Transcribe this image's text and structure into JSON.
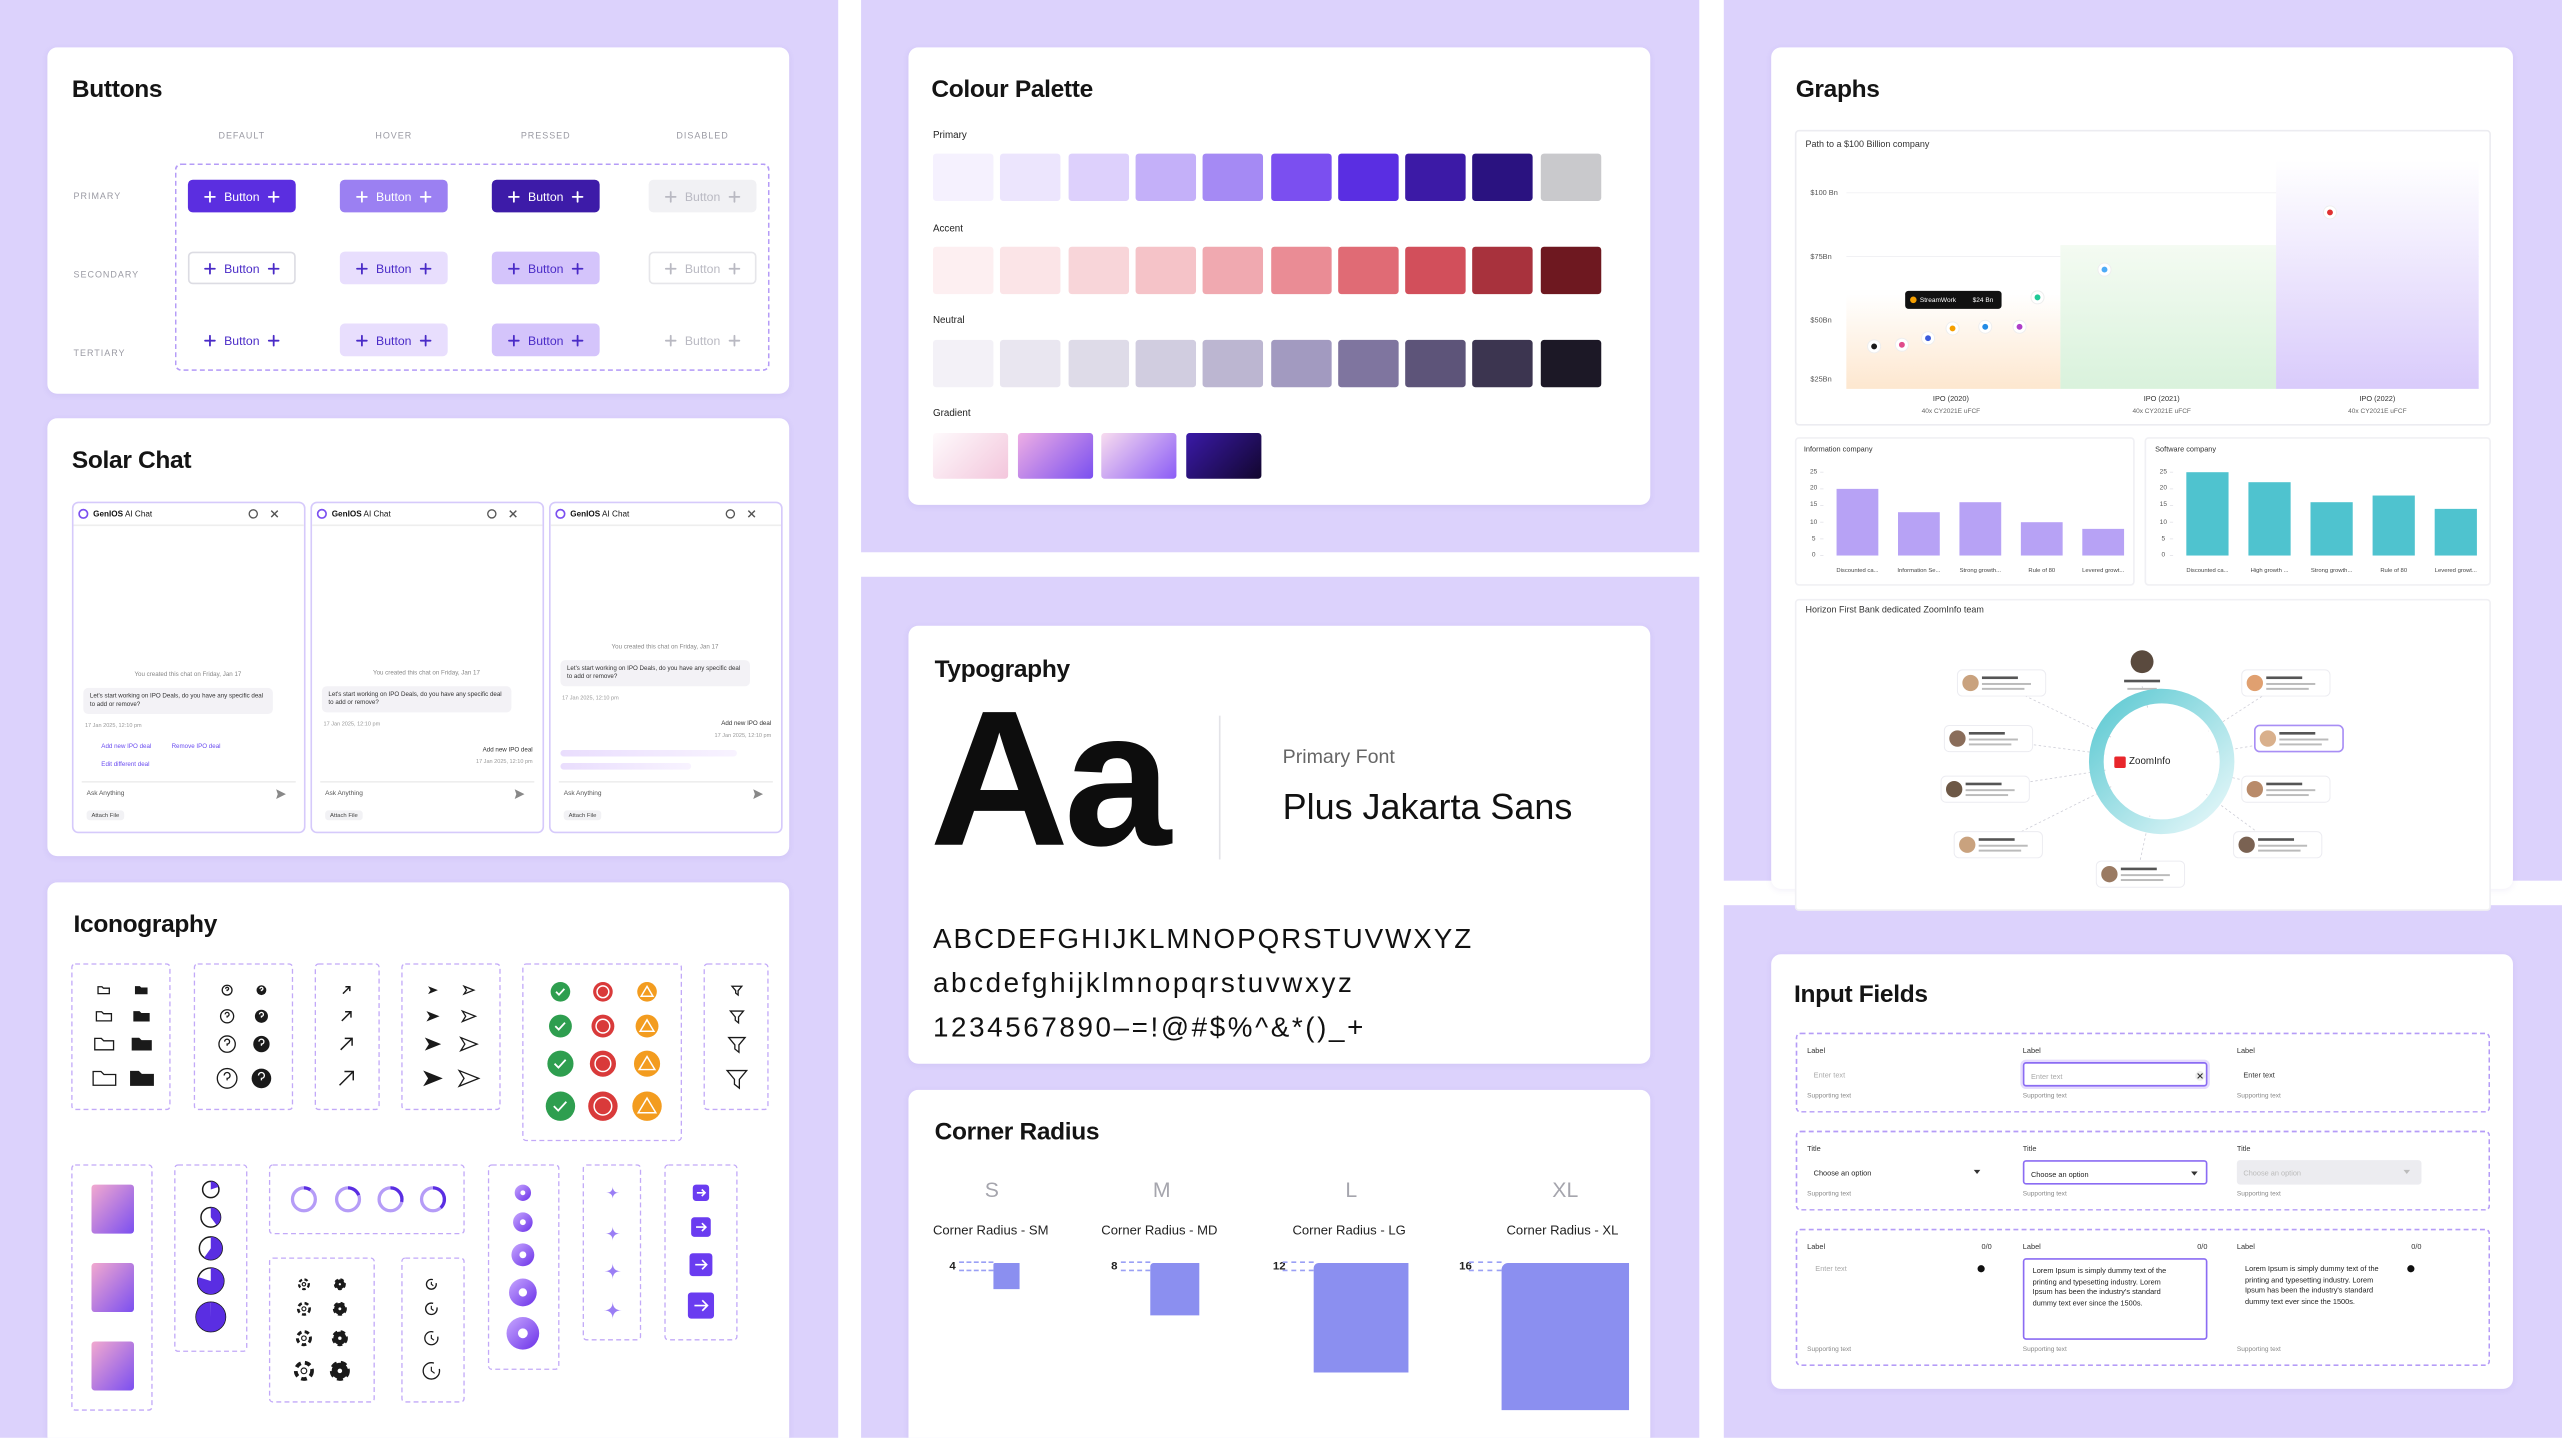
{
  "buttons": {
    "title": "Buttons",
    "states": [
      "DEFAULT",
      "HOVER",
      "PRESSED",
      "DISABLED"
    ],
    "variants": [
      "PRIMARY",
      "SECONDARY",
      "TERTIARY"
    ],
    "label": "Button"
  },
  "solar_chat": {
    "title": "Solar Chat",
    "app_name": "GenIOS",
    "app_suffix": "AI Chat",
    "created": "You created this chat on Friday, Jan 17",
    "prompt": "Let's start working on IPO Deals, do you have any specific deal to add or remove?",
    "timestamp": "17 Jan 2025, 12:10 pm",
    "options": [
      "Add new IPO deal",
      "Remove IPO deal",
      "Edit different deal"
    ],
    "input_placeholder": "Ask Anything",
    "attach": "Attach File"
  },
  "iconography": {
    "title": "Iconography"
  },
  "colour_palette": {
    "title": "Colour Palette",
    "groups": [
      {
        "name": "Primary",
        "colors": [
          "#f5f1fe",
          "#ece5fd",
          "#ddd0fc",
          "#c4b0f9",
          "#a58af4",
          "#7b4ff0",
          "#5a2ee2",
          "#3c1aa6",
          "#2a1280",
          "#c9c9cc"
        ]
      },
      {
        "name": "Accent",
        "colors": [
          "#fdeff1",
          "#fbe4e7",
          "#f8d5d9",
          "#f5c3c8",
          "#f0a9b0",
          "#ea8c95",
          "#e06b75",
          "#d24f5b",
          "#a8323d",
          "#6e1820"
        ]
      },
      {
        "name": "Neutral",
        "colors": [
          "#f3f1f7",
          "#e9e6f0",
          "#dedbe8",
          "#d1cde0",
          "#bcb6d1",
          "#a29ac0",
          "#7f759f",
          "#5d5479",
          "#3c3550",
          "#1c1826"
        ]
      }
    ],
    "gradient": {
      "name": "Gradient",
      "stops": [
        [
          "#fefafc",
          "#f3c6dc"
        ],
        [
          "#eeaee4",
          "#7a4ff0"
        ],
        [
          "#f8dcef",
          "#8b5cf6"
        ],
        [
          "#3a1aa8",
          "#12062e"
        ]
      ]
    }
  },
  "typography": {
    "title": "Typography",
    "sample": "Aa",
    "font_caption": "Primary Font",
    "font_name": "Plus Jakarta Sans",
    "uppercase": "ABCDEFGHIJKLMNOPQRSTUVWXYZ",
    "lowercase": "abcdefghijklmnopqrstuvwxyz",
    "symbols": "1234567890–=!@#$%^&*()_+"
  },
  "corner_radius": {
    "title": "Corner Radius",
    "color": "#8b8ff0",
    "items": [
      {
        "size": "S",
        "label": "Corner Radius - SM",
        "radius": 4
      },
      {
        "size": "M",
        "label": "Corner Radius - MD",
        "radius": 8
      },
      {
        "size": "L",
        "label": "Corner Radius - LG",
        "radius": 12
      },
      {
        "size": "XL",
        "label": "Corner Radius - XL",
        "radius": 16
      }
    ]
  },
  "graphs": {
    "title": "Graphs",
    "growth": {
      "title": "Path to a $100 Billion company",
      "y_labels": [
        "$100 Bn",
        "$75Bn",
        "$50Bn",
        "$25Bn"
      ],
      "x_labels": [
        "IPO (2020)",
        "IPO (2021)",
        "IPO (2022)"
      ],
      "x_sublabel": "40x CY2021E uFCF",
      "tooltip": {
        "name": "StreamWork",
        "value": "$24 Bn"
      }
    },
    "bar_charts": [
      {
        "type": "bar",
        "title": "Information company",
        "categories": [
          "Discounted ca...",
          "Information Se...",
          "Strong growth...",
          "Rule of 80",
          "Levered growt..."
        ],
        "values": [
          20,
          13,
          16,
          10,
          8
        ],
        "color": "#b7a2f5",
        "ylim": [
          0,
          25
        ],
        "yticks": [
          0,
          5,
          10,
          15,
          20,
          25
        ]
      },
      {
        "type": "bar",
        "title": "Software company",
        "categories": [
          "Discounted ca...",
          "High growth ...",
          "Strong growth...",
          "Rule of 80",
          "Levered growt..."
        ],
        "values": [
          25,
          22,
          16,
          18,
          14
        ],
        "color": "#4fc3cf",
        "ylim": [
          0,
          25
        ],
        "yticks": [
          0,
          5,
          10,
          15,
          20,
          25
        ]
      }
    ],
    "team": {
      "title": "Horizon First Bank dedicated ZoomInfo team",
      "center": "ZoomInfo"
    }
  },
  "input_fields": {
    "title": "Input Fields",
    "label": "Label",
    "placeholder": "Enter text",
    "supporting": "Supporting text",
    "select_label": "Title",
    "select_placeholder": "Choose an option",
    "counter": "0/0",
    "sample": "Lorem Ipsum is simply dummy text of the printing and typesetting industry. Lorem Ipsum has been the industry's standard dummy text ever since the 1500s."
  }
}
